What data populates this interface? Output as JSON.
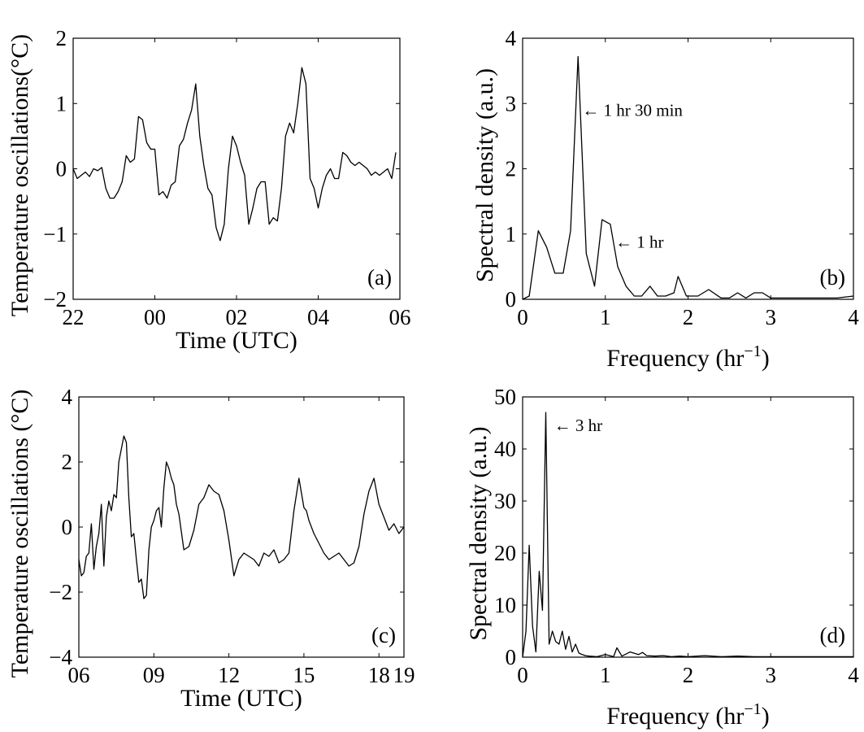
{
  "chart_data": [
    {
      "type": "line",
      "panel_label": "(a)",
      "xlabel": "Time (UTC)",
      "ylabel": "Temperature oscillations(°C)",
      "xlim": [
        22,
        30
      ],
      "ylim": [
        -2,
        2
      ],
      "xticks": [
        22,
        24,
        26,
        28,
        30
      ],
      "xtick_labels": [
        "22",
        "00",
        "02",
        "04",
        "06"
      ],
      "yticks": [
        -2,
        -1,
        0,
        1,
        2
      ],
      "ytick_labels": [
        "−2",
        "−1",
        "0",
        "1",
        "2"
      ],
      "series": [
        {
          "x": [
            22.0,
            22.1,
            22.2,
            22.3,
            22.4,
            22.5,
            22.6,
            22.7,
            22.8,
            22.9,
            23.0,
            23.1,
            23.2,
            23.3,
            23.4,
            23.5,
            23.6,
            23.7,
            23.8,
            23.9,
            24.0,
            24.1,
            24.2,
            24.3,
            24.4,
            24.5,
            24.6,
            24.7,
            24.8,
            24.9,
            25.0,
            25.1,
            25.2,
            25.3,
            25.4,
            25.5,
            25.6,
            25.7,
            25.8,
            25.9,
            26.0,
            26.1,
            26.2,
            26.3,
            26.4,
            26.5,
            26.6,
            26.7,
            26.8,
            26.9,
            27.0,
            27.1,
            27.2,
            27.3,
            27.4,
            27.5,
            27.6,
            27.7,
            27.8,
            27.9,
            28.0,
            28.1,
            28.2,
            28.3,
            28.4,
            28.5,
            28.6,
            28.7,
            28.8,
            28.9,
            29.0,
            29.1,
            29.2,
            29.3,
            29.4,
            29.5,
            29.6,
            29.7,
            29.8,
            29.9
          ],
          "y": [
            0.0,
            -0.15,
            -0.1,
            -0.05,
            -0.12,
            0.0,
            -0.03,
            0.02,
            -0.3,
            -0.45,
            -0.45,
            -0.35,
            -0.2,
            0.2,
            0.1,
            0.15,
            0.8,
            0.75,
            0.4,
            0.3,
            0.3,
            -0.4,
            -0.35,
            -0.45,
            -0.25,
            -0.2,
            0.35,
            0.45,
            0.7,
            0.9,
            1.3,
            0.5,
            0.05,
            -0.3,
            -0.4,
            -0.9,
            -1.1,
            -0.85,
            0.0,
            0.5,
            0.35,
            0.1,
            -0.1,
            -0.85,
            -0.6,
            -0.3,
            -0.2,
            -0.2,
            -0.85,
            -0.75,
            -0.8,
            -0.3,
            0.5,
            0.7,
            0.55,
            1.0,
            1.55,
            1.3,
            -0.15,
            -0.3,
            -0.6,
            -0.3,
            -0.1,
            0.0,
            -0.15,
            -0.15,
            0.25,
            0.2,
            0.1,
            0.05,
            0.1,
            0.05,
            0.0,
            -0.1,
            -0.05,
            -0.1,
            -0.05,
            0.0,
            -0.15,
            0.25
          ]
        }
      ]
    },
    {
      "type": "line",
      "panel_label": "(b)",
      "xlabel": "Frequency (hr",
      "xlabel_sup": "−1",
      "xlabel_tail": ")",
      "ylabel": "Spectral density (a.u.)",
      "xlim": [
        0,
        4
      ],
      "ylim": [
        0,
        4
      ],
      "xticks": [
        0,
        1,
        2,
        3,
        4
      ],
      "xtick_labels": [
        "0",
        "1",
        "2",
        "3",
        "4"
      ],
      "yticks": [
        0,
        1,
        2,
        3,
        4
      ],
      "ytick_labels": [
        "0",
        "1",
        "2",
        "3",
        "4"
      ],
      "annotations": [
        {
          "text": "← 1 hr 30 min",
          "x": 0.72,
          "y": 2.9
        },
        {
          "text": "← 1 hr",
          "x": 1.12,
          "y": 0.88
        }
      ],
      "series": [
        {
          "x": [
            0,
            0.08,
            0.19,
            0.29,
            0.39,
            0.49,
            0.58,
            0.67,
            0.77,
            0.87,
            0.96,
            1.06,
            1.15,
            1.25,
            1.35,
            1.44,
            1.54,
            1.63,
            1.73,
            1.83,
            1.88,
            1.98,
            2.12,
            2.25,
            2.4,
            2.5,
            2.6,
            2.7,
            2.8,
            2.9,
            3.0,
            3.1,
            3.2,
            3.5,
            3.8,
            4.0
          ],
          "y": [
            0,
            0.05,
            1.05,
            0.8,
            0.4,
            0.4,
            1.05,
            3.72,
            0.7,
            0.2,
            1.22,
            1.15,
            0.5,
            0.2,
            0.05,
            0.05,
            0.2,
            0.05,
            0.05,
            0.1,
            0.35,
            0.05,
            0.05,
            0.15,
            0.02,
            0.02,
            0.1,
            0.02,
            0.1,
            0.1,
            0.02,
            0.02,
            0.02,
            0.02,
            0.02,
            0.05
          ]
        }
      ]
    },
    {
      "type": "line",
      "panel_label": "(c)",
      "xlabel": "Time (UTC)",
      "ylabel": "Temperature oscillations (°C)",
      "xlim": [
        6,
        19
      ],
      "ylim": [
        -4,
        4
      ],
      "xticks": [
        6,
        9,
        12,
        15,
        18
      ],
      "xtick_labels": [
        "06",
        "09",
        "12",
        "15",
        "18"
      ],
      "extra_xtick_label": {
        "value": 19,
        "label": "19"
      },
      "yticks": [
        -4,
        -2,
        0,
        2,
        4
      ],
      "ytick_labels": [
        "−4",
        "−2",
        "0",
        "2",
        "4"
      ],
      "series": [
        {
          "x": [
            6.0,
            6.1,
            6.2,
            6.3,
            6.4,
            6.5,
            6.6,
            6.7,
            6.8,
            6.9,
            7.0,
            7.1,
            7.2,
            7.3,
            7.4,
            7.5,
            7.6,
            7.7,
            7.8,
            7.9,
            8.0,
            8.1,
            8.2,
            8.3,
            8.4,
            8.5,
            8.6,
            8.7,
            8.8,
            8.9,
            9.0,
            9.1,
            9.2,
            9.3,
            9.4,
            9.5,
            9.6,
            9.7,
            9.8,
            9.9,
            10.0,
            10.2,
            10.4,
            10.6,
            10.8,
            11.0,
            11.2,
            11.4,
            11.6,
            11.8,
            12.0,
            12.2,
            12.4,
            12.6,
            12.8,
            13.0,
            13.2,
            13.4,
            13.6,
            13.8,
            14.0,
            14.2,
            14.4,
            14.6,
            14.8,
            15.0,
            15.1,
            15.2,
            15.4,
            15.6,
            15.8,
            16.0,
            16.2,
            16.4,
            16.6,
            16.8,
            17.0,
            17.2,
            17.4,
            17.6,
            17.8,
            18.0,
            18.2,
            18.4,
            18.6,
            18.8,
            19.0
          ],
          "y": [
            -1.0,
            -1.5,
            -1.4,
            -0.9,
            -0.8,
            0.1,
            -1.3,
            -0.6,
            -0.2,
            0.7,
            -1.2,
            0.3,
            0.8,
            0.5,
            1.0,
            0.9,
            2.0,
            2.4,
            2.8,
            2.6,
            0.9,
            -0.3,
            -0.2,
            -1.0,
            -1.7,
            -1.6,
            -2.2,
            -2.1,
            -0.7,
            0.0,
            0.2,
            0.5,
            0.6,
            0.0,
            1.2,
            2.0,
            1.8,
            1.5,
            1.3,
            0.7,
            0.4,
            -0.7,
            -0.6,
            -0.1,
            0.7,
            0.9,
            1.3,
            1.1,
            1.0,
            0.5,
            -0.4,
            -1.5,
            -1.0,
            -0.8,
            -0.9,
            -1.0,
            -1.2,
            -0.8,
            -0.9,
            -0.7,
            -1.1,
            -1.0,
            -0.8,
            0.5,
            1.5,
            0.6,
            0.5,
            0.2,
            -0.2,
            -0.5,
            -0.8,
            -1.0,
            -0.9,
            -0.8,
            -1.0,
            -1.2,
            -1.1,
            -0.6,
            0.4,
            1.1,
            1.5,
            0.7,
            0.3,
            -0.1,
            0.1,
            -0.2,
            0.0
          ]
        }
      ]
    },
    {
      "type": "line",
      "panel_label": "(d)",
      "xlabel": "Frequency (hr",
      "xlabel_sup": "−1",
      "xlabel_tail": ")",
      "ylabel": "Spectral density (a.u.)",
      "xlim": [
        0,
        4
      ],
      "ylim": [
        0,
        50
      ],
      "xticks": [
        0,
        1,
        2,
        3,
        4
      ],
      "xtick_labels": [
        "0",
        "1",
        "2",
        "3",
        "4"
      ],
      "yticks": [
        0,
        10,
        20,
        30,
        40,
        50
      ],
      "ytick_labels": [
        "0",
        "10",
        "20",
        "30",
        "40",
        "50"
      ],
      "annotations": [
        {
          "text": "← 3 hr",
          "x": 0.38,
          "y": 44.5
        }
      ],
      "series": [
        {
          "x": [
            0,
            0.04,
            0.08,
            0.12,
            0.16,
            0.2,
            0.24,
            0.28,
            0.32,
            0.36,
            0.4,
            0.44,
            0.48,
            0.52,
            0.56,
            0.6,
            0.64,
            0.68,
            0.72,
            0.76,
            0.8,
            0.9,
            1.0,
            1.1,
            1.14,
            1.2,
            1.3,
            1.4,
            1.45,
            1.5,
            1.6,
            1.7,
            1.8,
            1.9,
            2.0,
            2.2,
            2.4,
            2.6,
            2.8,
            3.0,
            3.5,
            4.0
          ],
          "y": [
            0,
            5,
            21.5,
            6,
            1,
            16.5,
            9,
            47,
            2.5,
            5,
            3,
            2.5,
            5,
            1.5,
            4,
            1,
            2.5,
            0.8,
            0.5,
            0.3,
            0.2,
            0.1,
            0.5,
            0.1,
            1.8,
            0.2,
            1,
            0.5,
            0.9,
            0.3,
            0.2,
            0.3,
            0.1,
            0.2,
            0.1,
            0.3,
            0.1,
            0.2,
            0.1,
            0.1,
            0.1,
            0.1
          ]
        }
      ]
    }
  ]
}
